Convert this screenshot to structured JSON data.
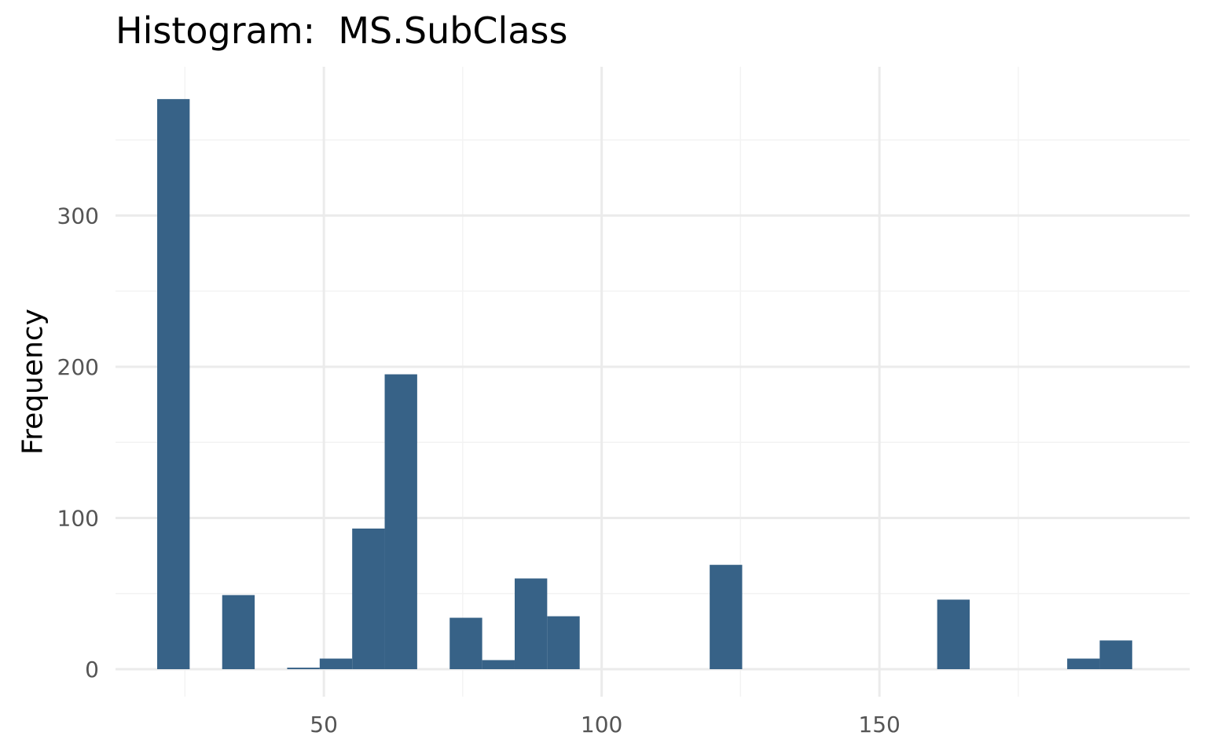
{
  "chart_data": {
    "type": "bar",
    "title": "Histogram:  MS.SubClass",
    "xlabel": "",
    "ylabel": "Frequency",
    "xlim": [
      12.5,
      197.5
    ],
    "ylim": [
      0,
      380
    ],
    "x_ticks": [
      50,
      100,
      150
    ],
    "y_ticks": [
      0,
      100,
      200,
      300
    ],
    "grid": true,
    "legend": "none",
    "bar_color": "#376287",
    "bin_width": 5.85,
    "bins": [
      {
        "x0": 20.0,
        "x1": 25.85,
        "value": 377
      },
      {
        "x0": 31.7,
        "x1": 37.55,
        "value": 49
      },
      {
        "x0": 43.4,
        "x1": 49.25,
        "value": 1
      },
      {
        "x0": 49.25,
        "x1": 55.1,
        "value": 7
      },
      {
        "x0": 55.1,
        "x1": 60.95,
        "value": 93
      },
      {
        "x0": 60.95,
        "x1": 66.8,
        "value": 195
      },
      {
        "x0": 72.65,
        "x1": 78.5,
        "value": 34
      },
      {
        "x0": 78.5,
        "x1": 84.35,
        "value": 6
      },
      {
        "x0": 84.35,
        "x1": 90.2,
        "value": 60
      },
      {
        "x0": 90.2,
        "x1": 96.05,
        "value": 35
      },
      {
        "x0": 119.45,
        "x1": 125.3,
        "value": 69
      },
      {
        "x0": 160.4,
        "x1": 166.25,
        "value": 46
      },
      {
        "x0": 183.8,
        "x1": 189.65,
        "value": 7
      },
      {
        "x0": 189.65,
        "x1": 195.5,
        "value": 19
      }
    ]
  },
  "colors": {
    "grid_major": "#ebebeb",
    "grid_minor": "#f3f3f3",
    "tick_text": "#555555"
  }
}
